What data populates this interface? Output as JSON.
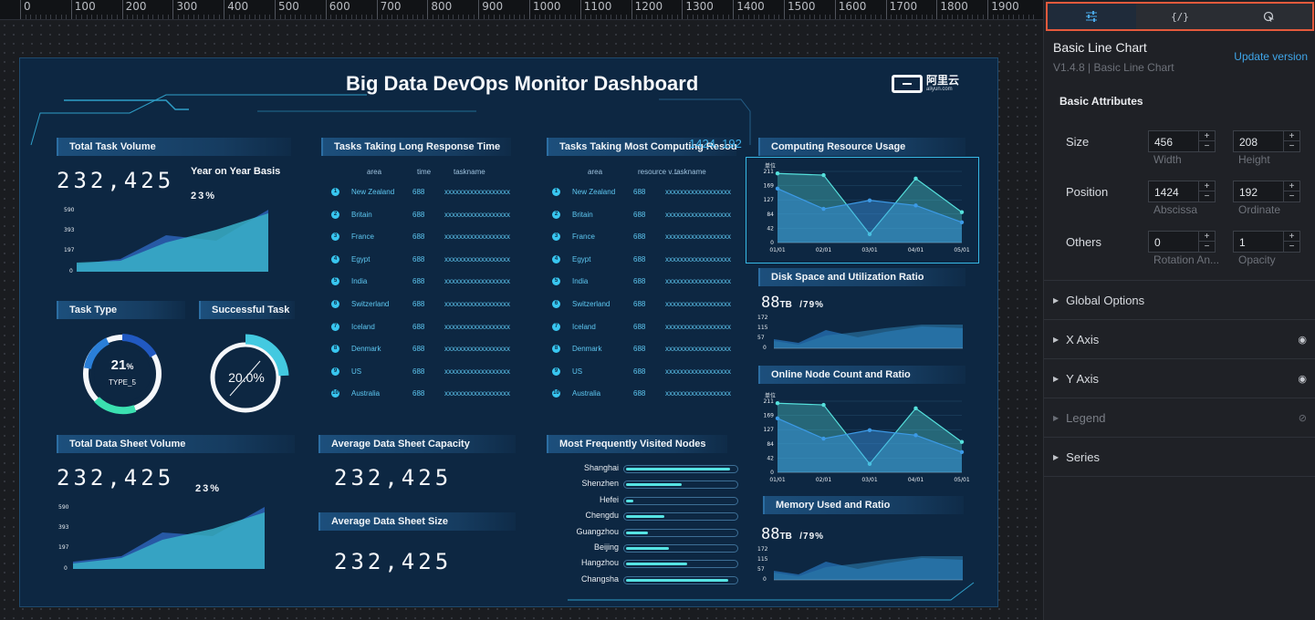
{
  "ruler": {
    "ticks": [
      "0",
      "100",
      "200",
      "300",
      "400",
      "500",
      "600",
      "700",
      "800",
      "900",
      "1000",
      "1100",
      "1200",
      "1300",
      "1400",
      "1500",
      "1600",
      "1700",
      "1800",
      "1900"
    ]
  },
  "dashboard": {
    "title": "Big Data DevOps Monitor Dashboard",
    "logo_text": "阿里云",
    "logo_sub": "aliyun.com",
    "coord_readout": "1424, 192",
    "total_task_volume": {
      "title": "Total Task Volume",
      "value": "232,425",
      "yoy_label": "Year on Year Basis",
      "yoy_value": "23%",
      "y_ticks": [
        "590",
        "393",
        "197",
        "0"
      ]
    },
    "task_type": {
      "title": "Task Type",
      "percent": "21",
      "unit": "%",
      "label": "TYPE_5"
    },
    "successful_task": {
      "title": "Successful Task",
      "percent": "20.0%",
      "fraction": 0.2
    },
    "total_data_sheet": {
      "title": "Total Data Sheet Volume",
      "value": "232,425",
      "pct": "23%",
      "y_ticks": [
        "590",
        "393",
        "197",
        "0"
      ]
    },
    "avg_capacity": {
      "title": "Average Data Sheet Capacity",
      "value": "232,425"
    },
    "avg_size": {
      "title": "Average Data Sheet Size",
      "value": "232,425"
    },
    "long_response": {
      "title": "Tasks Taking Long Response Time",
      "headers": [
        "area",
        "time",
        "taskname"
      ],
      "rows": [
        {
          "rank": "1",
          "area": "New Zealand",
          "time": "688",
          "task": "xxxxxxxxxxxxxxxxxx"
        },
        {
          "rank": "2",
          "area": "Britain",
          "time": "688",
          "task": "xxxxxxxxxxxxxxxxxx"
        },
        {
          "rank": "3",
          "area": "France",
          "time": "688",
          "task": "xxxxxxxxxxxxxxxxxx"
        },
        {
          "rank": "4",
          "area": "Egypt",
          "time": "688",
          "task": "xxxxxxxxxxxxxxxxxx"
        },
        {
          "rank": "5",
          "area": "India",
          "time": "688",
          "task": "xxxxxxxxxxxxxxxxxx"
        },
        {
          "rank": "6",
          "area": "Switzerland",
          "time": "688",
          "task": "xxxxxxxxxxxxxxxxxx"
        },
        {
          "rank": "7",
          "area": "Iceland",
          "time": "688",
          "task": "xxxxxxxxxxxxxxxxxx"
        },
        {
          "rank": "8",
          "area": "Denmark",
          "time": "688",
          "task": "xxxxxxxxxxxxxxxxxx"
        },
        {
          "rank": "9",
          "area": "US",
          "time": "688",
          "task": "xxxxxxxxxxxxxxxxxx"
        },
        {
          "rank": "10",
          "area": "Australia",
          "time": "688",
          "task": "xxxxxxxxxxxxxxxxxx"
        }
      ]
    },
    "computing_resources": {
      "title": "Tasks Taking Most Computing Resources",
      "headers": [
        "area",
        "resource v...",
        "taskname"
      ],
      "rows": [
        {
          "rank": "1",
          "area": "New Zealand",
          "time": "688",
          "task": "xxxxxxxxxxxxxxxxxx"
        },
        {
          "rank": "2",
          "area": "Britain",
          "time": "688",
          "task": "xxxxxxxxxxxxxxxxxx"
        },
        {
          "rank": "3",
          "area": "France",
          "time": "688",
          "task": "xxxxxxxxxxxxxxxxxx"
        },
        {
          "rank": "4",
          "area": "Egypt",
          "time": "688",
          "task": "xxxxxxxxxxxxxxxxxx"
        },
        {
          "rank": "5",
          "area": "India",
          "time": "688",
          "task": "xxxxxxxxxxxxxxxxxx"
        },
        {
          "rank": "6",
          "area": "Switzerland",
          "time": "688",
          "task": "xxxxxxxxxxxxxxxxxx"
        },
        {
          "rank": "7",
          "area": "Iceland",
          "time": "688",
          "task": "xxxxxxxxxxxxxxxxxx"
        },
        {
          "rank": "8",
          "area": "Denmark",
          "time": "688",
          "task": "xxxxxxxxxxxxxxxxxx"
        },
        {
          "rank": "9",
          "area": "US",
          "time": "688",
          "task": "xxxxxxxxxxxxxxxxxx"
        },
        {
          "rank": "10",
          "area": "Australia",
          "time": "688",
          "task": "xxxxxxxxxxxxxxxxxx"
        }
      ]
    },
    "visited_nodes": {
      "title": "Most Frequently Visited Nodes",
      "rows": [
        {
          "name": "Shanghai",
          "value": 0.97
        },
        {
          "name": "Shenzhen",
          "value": 0.52
        },
        {
          "name": "Hefei",
          "value": 0.07
        },
        {
          "name": "Chengdu",
          "value": 0.36
        },
        {
          "name": "Guangzhou",
          "value": 0.2
        },
        {
          "name": "Beijing",
          "value": 0.4
        },
        {
          "name": "Hangzhou",
          "value": 0.57
        },
        {
          "name": "Changsha",
          "value": 0.95
        }
      ]
    },
    "computing_usage": {
      "title": "Computing Resource Usage"
    },
    "disk_space": {
      "title": "Disk Space and Utilization Ratio",
      "value": "88",
      "unit": "TB",
      "ratio": "/79%",
      "y_ticks": [
        "172",
        "115",
        "57",
        "0"
      ]
    },
    "online_nodes": {
      "title": "Online Node Count and Ratio"
    },
    "memory": {
      "title": "Memory Used and Ratio",
      "value": "88",
      "unit": "TB",
      "ratio": "/79%",
      "y_ticks": [
        "172",
        "115",
        "57",
        "0"
      ]
    }
  },
  "chart_data": [
    {
      "type": "line",
      "title": "Computing Resource Usage",
      "ylabel": "单位",
      "x": [
        "01/01",
        "02/01",
        "03/01",
        "04/01",
        "05/01"
      ],
      "y_ticks": [
        "211",
        "169",
        "127",
        "84",
        "42",
        "0"
      ],
      "ylim": [
        0,
        211
      ],
      "series": [
        {
          "values": [
            205,
            200,
            25,
            190,
            90
          ],
          "color": "#55e0dc"
        },
        {
          "values": [
            160,
            100,
            125,
            110,
            60
          ],
          "color": "#3c9ae6"
        }
      ]
    },
    {
      "type": "line",
      "title": "Online Node Count and Ratio",
      "ylabel": "单位",
      "x": [
        "01/01",
        "02/01",
        "03/01",
        "04/01",
        "05/01"
      ],
      "y_ticks": [
        "211",
        "169",
        "127",
        "84",
        "42",
        "0"
      ],
      "ylim": [
        0,
        211
      ],
      "series": [
        {
          "values": [
            205,
            200,
            25,
            190,
            90
          ],
          "color": "#55e0dc"
        },
        {
          "values": [
            160,
            100,
            125,
            110,
            60
          ],
          "color": "#3c9ae6"
        }
      ]
    }
  ],
  "panel": {
    "tabs": [
      "settings",
      "code",
      "interaction"
    ],
    "component_name": "Basic Line Chart",
    "version": "V1.4.8 | Basic Line Chart",
    "update_label": "Update version",
    "basic_attributes": "Basic Attributes",
    "size_label": "Size",
    "width_value": "456",
    "height_value": "208",
    "width_label": "Width",
    "height_label": "Height",
    "position_label": "Position",
    "abscissa_value": "1424",
    "ordinate_value": "192",
    "abscissa_label": "Abscissa",
    "ordinate_label": "Ordinate",
    "others_label": "Others",
    "rotation_value": "0",
    "opacity_value": "1",
    "rotation_label": "Rotation An...",
    "opacity_label": "Opacity",
    "sections": [
      "Global Options",
      "X Axis",
      "Y Axis",
      "Legend",
      "Series"
    ]
  }
}
